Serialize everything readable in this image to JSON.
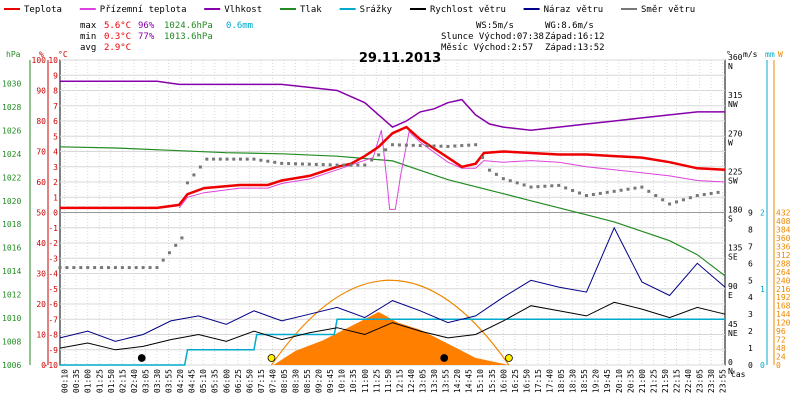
{
  "legend": [
    {
      "label": "Teplota",
      "color": "#ee0000"
    },
    {
      "label": "Přízemní teplota",
      "color": "#dd44dd"
    },
    {
      "label": "Vlhkost",
      "color": "#8800aa"
    },
    {
      "label": "Tlak",
      "color": "#228b22"
    },
    {
      "label": "Srážky",
      "color": "#00aacc"
    },
    {
      "label": "Rychlost větru",
      "color": "#000000"
    },
    {
      "label": "Náraz větru",
      "color": "#000088"
    },
    {
      "label": "Směr větru",
      "color": "#777777"
    }
  ],
  "stats": {
    "max_label": "max",
    "max_temp": "5.6°C",
    "max_hum": "96%",
    "max_press": "1024.6hPa",
    "max_rain": "0.6mm",
    "min_label": "min",
    "min_temp": "0.3°C",
    "min_hum": "77%",
    "min_press": "1013.6hPa",
    "avg_label": "avg",
    "avg_temp": "2.9°C"
  },
  "info": {
    "ws": "WS:5m/s",
    "wg": "WG:8.6m/s",
    "sun": "Slunce Východ:07:38",
    "sunset": "Západ:16:12",
    "moon": "Měsíc Východ:2:57",
    "moonset": "Západ:13:52"
  },
  "date": "29.11.2013",
  "axis_units": {
    "hpa": "hPa",
    "pct": "%",
    "temp": "°C",
    "deg": "°",
    "ms": "m/s",
    "mm": "mm",
    "wm2": "W",
    "cas": "čas"
  },
  "colors": {
    "temp": "#ee0000",
    "ground": "#dd44dd",
    "hum": "#8800aa",
    "press": "#228b22",
    "rain": "#00aacc",
    "wind": "#000000",
    "gust": "#000088",
    "dir": "#777777",
    "solar_curve": "#ee8800",
    "solar_fill": "#ff7f00",
    "hpa_axis": "#228b22",
    "pct_axis": "#cc0000",
    "temp_axis": "#cc0000",
    "rain_axis": "#00aacc",
    "solar_axis": "#ee8800",
    "grid": "#d8d8d8",
    "sun_marker": "#ffee00",
    "moon_marker": "#000000"
  },
  "chart_data": {
    "type": "line",
    "title": "29.11.2013",
    "x_unit": "čas",
    "x_range_hours": [
      0,
      24
    ],
    "x_ticks": [
      "00:10",
      "00:35",
      "01:00",
      "01:25",
      "01:50",
      "02:15",
      "02:40",
      "03:05",
      "03:30",
      "03:55",
      "04:20",
      "04:45",
      "05:10",
      "05:35",
      "06:00",
      "06:25",
      "06:50",
      "07:15",
      "07:40",
      "08:05",
      "08:30",
      "08:55",
      "09:20",
      "09:45",
      "10:10",
      "10:35",
      "11:00",
      "11:25",
      "11:50",
      "12:15",
      "12:40",
      "13:05",
      "13:30",
      "13:55",
      "14:20",
      "14:45",
      "15:10",
      "15:35",
      "16:00",
      "16:25",
      "16:50",
      "17:15",
      "17:40",
      "18:05",
      "18:30",
      "18:55",
      "19:20",
      "19:45",
      "20:10",
      "20:35",
      "21:00",
      "21:25",
      "21:50",
      "22:15",
      "22:40",
      "23:05",
      "23:30",
      "23:55"
    ],
    "axes": {
      "pressure_hpa": {
        "range": [
          1006,
          1032
        ],
        "ticks": [
          1006,
          1008,
          1010,
          1012,
          1014,
          1016,
          1018,
          1020,
          1022,
          1024,
          1026,
          1028,
          1030
        ]
      },
      "humidity_pct": {
        "range": [
          0,
          100
        ],
        "ticks": [
          0,
          5,
          10,
          15,
          20,
          25,
          30,
          35,
          40,
          45,
          50,
          55,
          60,
          65,
          70,
          75,
          80,
          85,
          90,
          95,
          100
        ]
      },
      "temperature_c": {
        "range": [
          -10,
          10
        ],
        "ticks": [
          -10,
          -9,
          -8,
          -7,
          -6,
          -5,
          -4,
          -3,
          -2,
          -1,
          0,
          1,
          2,
          3,
          4,
          5,
          6,
          7,
          8,
          9,
          10
        ]
      },
      "wind_dir_deg": {
        "range": [
          0,
          360
        ],
        "ticks": [
          {
            "v": 360,
            "l": "360",
            "d": "N"
          },
          {
            "v": 315,
            "l": "315",
            "d": "NW"
          },
          {
            "v": 270,
            "l": "270",
            "d": "W"
          },
          {
            "v": 225,
            "l": "225",
            "d": "SW"
          },
          {
            "v": 180,
            "l": "180",
            "d": "S"
          },
          {
            "v": 135,
            "l": "135",
            "d": "SE"
          },
          {
            "v": 90,
            "l": "90",
            "d": "E"
          },
          {
            "v": 45,
            "l": "45",
            "d": "NE"
          },
          {
            "v": 0,
            "l": "0",
            "d": "N"
          }
        ]
      },
      "wind_ms": {
        "range": [
          0,
          9
        ],
        "ticks": [
          0,
          1,
          2,
          3,
          4,
          5,
          6,
          7,
          8,
          9
        ]
      },
      "rain_mm": {
        "range": [
          0,
          2
        ],
        "ticks": [
          0,
          1,
          2
        ]
      },
      "solar_w": {
        "range": [
          0,
          432
        ],
        "ticks": [
          0,
          24,
          48,
          72,
          96,
          120,
          144,
          168,
          192,
          216,
          240,
          264,
          288,
          312,
          336,
          360,
          384,
          408,
          432
        ]
      }
    },
    "series": [
      {
        "name": "Teplota",
        "unit": "°C",
        "points": [
          [
            0,
            0.3
          ],
          [
            3.5,
            0.3
          ],
          [
            4.3,
            0.5
          ],
          [
            4.6,
            1.2
          ],
          [
            5.2,
            1.6
          ],
          [
            6.5,
            1.8
          ],
          [
            7.5,
            1.8
          ],
          [
            8,
            2.1
          ],
          [
            9,
            2.4
          ],
          [
            10,
            3.0
          ],
          [
            10.5,
            3.2
          ],
          [
            11,
            3.7
          ],
          [
            11.5,
            4.3
          ],
          [
            12,
            5.2
          ],
          [
            12.5,
            5.6
          ],
          [
            13,
            4.8
          ],
          [
            13.5,
            4.2
          ],
          [
            14,
            3.6
          ],
          [
            14.5,
            3.0
          ],
          [
            15,
            3.2
          ],
          [
            15.3,
            3.9
          ],
          [
            16,
            4.0
          ],
          [
            17,
            3.9
          ],
          [
            18,
            3.8
          ],
          [
            19,
            3.8
          ],
          [
            20,
            3.7
          ],
          [
            21,
            3.6
          ],
          [
            22,
            3.3
          ],
          [
            23,
            2.9
          ],
          [
            24,
            2.8
          ]
        ]
      },
      {
        "name": "Přízemní teplota",
        "unit": "°C",
        "points": [
          [
            4.3,
            0.3
          ],
          [
            4.6,
            1.0
          ],
          [
            5.2,
            1.3
          ],
          [
            6.5,
            1.6
          ],
          [
            7.5,
            1.6
          ],
          [
            8,
            1.9
          ],
          [
            9,
            2.2
          ],
          [
            10,
            2.8
          ],
          [
            10.8,
            3.3
          ],
          [
            11.3,
            3.6
          ],
          [
            11.6,
            5.4
          ],
          [
            11.8,
            2.0
          ],
          [
            11.9,
            0.2
          ],
          [
            12.1,
            0.2
          ],
          [
            12.3,
            2.5
          ],
          [
            12.6,
            5.3
          ],
          [
            13,
            4.6
          ],
          [
            14,
            3.3
          ],
          [
            14.5,
            2.9
          ],
          [
            15,
            2.9
          ],
          [
            15.3,
            3.4
          ],
          [
            16,
            3.3
          ],
          [
            17,
            3.4
          ],
          [
            18,
            3.3
          ],
          [
            19,
            3.0
          ],
          [
            20,
            2.8
          ],
          [
            21,
            2.6
          ],
          [
            22,
            2.4
          ],
          [
            23,
            2.1
          ],
          [
            24,
            2.0
          ]
        ]
      },
      {
        "name": "Vlhkost",
        "unit": "%",
        "points": [
          [
            0,
            93
          ],
          [
            3.5,
            93
          ],
          [
            4.3,
            92
          ],
          [
            6,
            92
          ],
          [
            7.5,
            92
          ],
          [
            8,
            92
          ],
          [
            9,
            91
          ],
          [
            10,
            90
          ],
          [
            10.5,
            88
          ],
          [
            11,
            86
          ],
          [
            11.5,
            82
          ],
          [
            12,
            78
          ],
          [
            12.5,
            80
          ],
          [
            13,
            83
          ],
          [
            13.5,
            84
          ],
          [
            14,
            86
          ],
          [
            14.5,
            87
          ],
          [
            15,
            82
          ],
          [
            15.5,
            79
          ],
          [
            16,
            78
          ],
          [
            17,
            77
          ],
          [
            18,
            78
          ],
          [
            19,
            79
          ],
          [
            20,
            80
          ],
          [
            21,
            81
          ],
          [
            22,
            82
          ],
          [
            23,
            83
          ],
          [
            24,
            83
          ]
        ]
      },
      {
        "name": "Tlak",
        "unit": "hPa",
        "points": [
          [
            0,
            1024.6
          ],
          [
            2,
            1024.5
          ],
          [
            4,
            1024.3
          ],
          [
            6,
            1024.1
          ],
          [
            8,
            1024.0
          ],
          [
            10,
            1023.8
          ],
          [
            11,
            1023.6
          ],
          [
            12,
            1023.4
          ],
          [
            13,
            1022.6
          ],
          [
            14,
            1021.8
          ],
          [
            15,
            1021.2
          ],
          [
            16,
            1020.6
          ],
          [
            17,
            1020.0
          ],
          [
            18,
            1019.4
          ],
          [
            19,
            1018.8
          ],
          [
            20,
            1018.2
          ],
          [
            21,
            1017.4
          ],
          [
            22,
            1016.6
          ],
          [
            23,
            1015.4
          ],
          [
            24,
            1013.6
          ]
        ]
      },
      {
        "name": "Srážky",
        "unit": "mm",
        "points": [
          [
            0,
            0
          ],
          [
            4.5,
            0
          ],
          [
            4.6,
            0.2
          ],
          [
            7,
            0.2
          ],
          [
            7.1,
            0.4
          ],
          [
            9.9,
            0.4
          ],
          [
            10,
            0.6
          ],
          [
            24,
            0.6
          ]
        ]
      },
      {
        "name": "Rychlost větru",
        "unit": "m/s",
        "points": [
          [
            0,
            1.0
          ],
          [
            1,
            1.3
          ],
          [
            2,
            0.9
          ],
          [
            3,
            1.1
          ],
          [
            4,
            1.5
          ],
          [
            5,
            1.8
          ],
          [
            6,
            1.4
          ],
          [
            7,
            2.0
          ],
          [
            8,
            1.5
          ],
          [
            9,
            1.9
          ],
          [
            10,
            2.2
          ],
          [
            11,
            1.8
          ],
          [
            12,
            2.5
          ],
          [
            13,
            2.0
          ],
          [
            14,
            1.6
          ],
          [
            15,
            1.8
          ],
          [
            16,
            2.6
          ],
          [
            17,
            3.5
          ],
          [
            18,
            3.2
          ],
          [
            19,
            2.9
          ],
          [
            20,
            3.7
          ],
          [
            21,
            3.3
          ],
          [
            22,
            2.8
          ],
          [
            23,
            3.4
          ],
          [
            24,
            3.0
          ]
        ]
      },
      {
        "name": "Náraz větru",
        "unit": "m/s",
        "points": [
          [
            0,
            1.6
          ],
          [
            1,
            2.0
          ],
          [
            2,
            1.4
          ],
          [
            3,
            1.8
          ],
          [
            4,
            2.6
          ],
          [
            5,
            2.9
          ],
          [
            6,
            2.4
          ],
          [
            7,
            3.2
          ],
          [
            8,
            2.6
          ],
          [
            9,
            3.0
          ],
          [
            10,
            3.4
          ],
          [
            11,
            2.8
          ],
          [
            12,
            3.8
          ],
          [
            13,
            3.2
          ],
          [
            14,
            2.5
          ],
          [
            15,
            2.9
          ],
          [
            16,
            4.0
          ],
          [
            17,
            5.0
          ],
          [
            18,
            4.6
          ],
          [
            19,
            4.3
          ],
          [
            20,
            8.1
          ],
          [
            21,
            4.9
          ],
          [
            22,
            4.1
          ],
          [
            23,
            6.0
          ],
          [
            24,
            4.6
          ]
        ]
      },
      {
        "name": "Směr větru",
        "unit": "°",
        "points": [
          [
            0,
            115
          ],
          [
            3.5,
            115
          ],
          [
            4.4,
            150
          ],
          [
            4.6,
            215
          ],
          [
            5.3,
            243
          ],
          [
            7,
            243
          ],
          [
            8,
            238
          ],
          [
            10,
            236
          ],
          [
            11,
            236
          ],
          [
            12,
            260
          ],
          [
            13,
            259
          ],
          [
            14,
            258
          ],
          [
            15,
            260
          ],
          [
            15.5,
            230
          ],
          [
            16,
            220
          ],
          [
            17,
            210
          ],
          [
            18,
            212
          ],
          [
            19,
            200
          ],
          [
            20,
            205
          ],
          [
            21,
            210
          ],
          [
            22,
            190
          ],
          [
            23,
            200
          ],
          [
            24,
            205
          ]
        ]
      },
      {
        "name": "Sluneční záření",
        "unit": "W",
        "points": [
          [
            7.7,
            0
          ],
          [
            8.5,
            40
          ],
          [
            9.5,
            70
          ],
          [
            10.5,
            110
          ],
          [
            11.5,
            150
          ],
          [
            12.2,
            120
          ],
          [
            13,
            100
          ],
          [
            14,
            60
          ],
          [
            15,
            20
          ],
          [
            16.2,
            0
          ]
        ]
      }
    ],
    "markers": [
      {
        "type": "sunrise",
        "time": "07:38"
      },
      {
        "type": "sunset",
        "time": "16:12"
      },
      {
        "type": "moonrise",
        "time": "2:57"
      },
      {
        "type": "moonset",
        "time": "13:52"
      }
    ]
  }
}
